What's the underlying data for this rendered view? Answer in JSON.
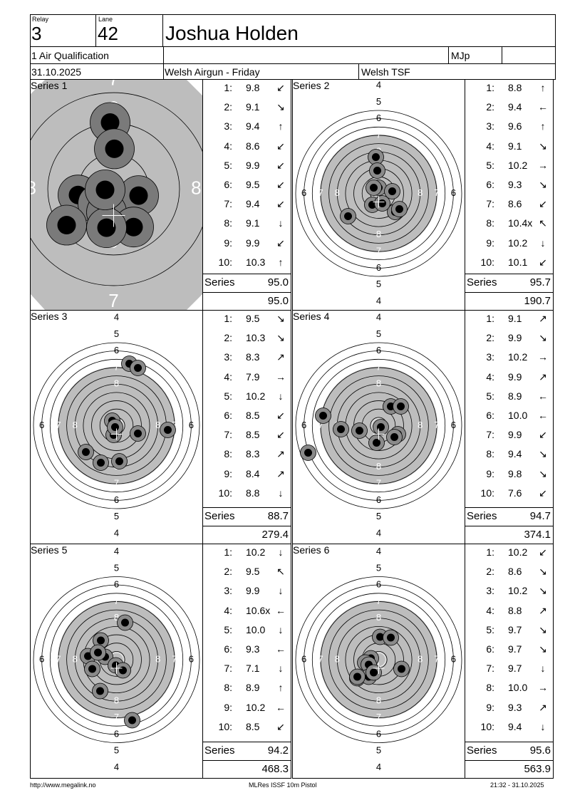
{
  "header": {
    "relay_label": "Relay",
    "relay": "3",
    "lane_label": "Lane",
    "lane": "42",
    "name": "Joshua Holden",
    "event": "1 Air Qualification",
    "judge": "MJp",
    "date": "31.10.2025",
    "competition": "Welsh Airgun - Friday",
    "club": "Welsh TSF"
  },
  "series_label": "Series",
  "series": [
    {
      "title": "Series 1",
      "zoomed": true,
      "shots": [
        {
          "n": "1:",
          "v": "9.8",
          "dir": "↙"
        },
        {
          "n": "2:",
          "v": "9.1",
          "dir": "↘"
        },
        {
          "n": "3:",
          "v": "9.4",
          "dir": "↑"
        },
        {
          "n": "4:",
          "v": "8.6",
          "dir": "↙"
        },
        {
          "n": "5:",
          "v": "9.9",
          "dir": "↙"
        },
        {
          "n": "6:",
          "v": "9.5",
          "dir": "↙"
        },
        {
          "n": "7:",
          "v": "9.4",
          "dir": "↙"
        },
        {
          "n": "8:",
          "v": "9.1",
          "dir": "↓"
        },
        {
          "n": "9:",
          "v": "9.9",
          "dir": "↙"
        },
        {
          "n": "10:",
          "v": "10.3",
          "dir": "↑"
        }
      ],
      "total": "95.0",
      "cumulative": "95.0"
    },
    {
      "title": "Series 2",
      "zoomed": false,
      "shots": [
        {
          "n": "1:",
          "v": "8.8",
          "dir": "↑"
        },
        {
          "n": "2:",
          "v": "9.4",
          "dir": "←"
        },
        {
          "n": "3:",
          "v": "9.6",
          "dir": "↑"
        },
        {
          "n": "4:",
          "v": "9.1",
          "dir": "↘"
        },
        {
          "n": "5:",
          "v": "10.2",
          "dir": "→"
        },
        {
          "n": "6:",
          "v": "9.3",
          "dir": "↘"
        },
        {
          "n": "7:",
          "v": "8.6",
          "dir": "↙"
        },
        {
          "n": "8:",
          "v": "10.4x",
          "dir": "↖"
        },
        {
          "n": "9:",
          "v": "10.2",
          "dir": "↓"
        },
        {
          "n": "10:",
          "v": "10.1",
          "dir": "↙"
        }
      ],
      "total": "95.7",
      "cumulative": "190.7"
    },
    {
      "title": "Series 3",
      "zoomed": false,
      "shots": [
        {
          "n": "1:",
          "v": "9.5",
          "dir": "↘"
        },
        {
          "n": "2:",
          "v": "10.3",
          "dir": "↘"
        },
        {
          "n": "3:",
          "v": "8.3",
          "dir": "↗"
        },
        {
          "n": "4:",
          "v": "7.9",
          "dir": "→"
        },
        {
          "n": "5:",
          "v": "10.2",
          "dir": "↓"
        },
        {
          "n": "6:",
          "v": "8.5",
          "dir": "↙"
        },
        {
          "n": "7:",
          "v": "8.5",
          "dir": "↙"
        },
        {
          "n": "8:",
          "v": "8.3",
          "dir": "↗"
        },
        {
          "n": "9:",
          "v": "8.4",
          "dir": "↗"
        },
        {
          "n": "10:",
          "v": "8.8",
          "dir": "↓"
        }
      ],
      "total": "88.7",
      "cumulative": "279.4"
    },
    {
      "title": "Series 4",
      "zoomed": false,
      "shots": [
        {
          "n": "1:",
          "v": "9.1",
          "dir": "↗"
        },
        {
          "n": "2:",
          "v": "9.9",
          "dir": "↘"
        },
        {
          "n": "3:",
          "v": "10.2",
          "dir": "→"
        },
        {
          "n": "4:",
          "v": "9.9",
          "dir": "↗"
        },
        {
          "n": "5:",
          "v": "8.9",
          "dir": "←"
        },
        {
          "n": "6:",
          "v": "10.0",
          "dir": "←"
        },
        {
          "n": "7:",
          "v": "9.9",
          "dir": "↙"
        },
        {
          "n": "8:",
          "v": "9.4",
          "dir": "↘"
        },
        {
          "n": "9:",
          "v": "9.8",
          "dir": "↘"
        },
        {
          "n": "10:",
          "v": "7.6",
          "dir": "↙"
        }
      ],
      "total": "94.7",
      "cumulative": "374.1"
    },
    {
      "title": "Series 5",
      "zoomed": false,
      "shots": [
        {
          "n": "1:",
          "v": "10.2",
          "dir": "↓"
        },
        {
          "n": "2:",
          "v": "9.5",
          "dir": "↖"
        },
        {
          "n": "3:",
          "v": "9.9",
          "dir": "↓"
        },
        {
          "n": "4:",
          "v": "10.6x",
          "dir": "←"
        },
        {
          "n": "5:",
          "v": "10.0",
          "dir": "↓"
        },
        {
          "n": "6:",
          "v": "9.3",
          "dir": "←"
        },
        {
          "n": "7:",
          "v": "7.1",
          "dir": "↓"
        },
        {
          "n": "8:",
          "v": "8.9",
          "dir": "↑"
        },
        {
          "n": "9:",
          "v": "10.2",
          "dir": "←"
        },
        {
          "n": "10:",
          "v": "8.5",
          "dir": "↙"
        }
      ],
      "total": "94.2",
      "cumulative": "468.3"
    },
    {
      "title": "Series 6",
      "zoomed": false,
      "shots": [
        {
          "n": "1:",
          "v": "10.2",
          "dir": "↙"
        },
        {
          "n": "2:",
          "v": "8.6",
          "dir": "↘"
        },
        {
          "n": "3:",
          "v": "10.2",
          "dir": "↘"
        },
        {
          "n": "4:",
          "v": "8.8",
          "dir": "↗"
        },
        {
          "n": "5:",
          "v": "9.7",
          "dir": "↘"
        },
        {
          "n": "6:",
          "v": "9.7",
          "dir": "↘"
        },
        {
          "n": "7:",
          "v": "9.7",
          "dir": "↓"
        },
        {
          "n": "8:",
          "v": "10.0",
          "dir": "→"
        },
        {
          "n": "9:",
          "v": "9.3",
          "dir": "↗"
        },
        {
          "n": "10:",
          "v": "9.4",
          "dir": "↓"
        }
      ],
      "total": "95.6",
      "cumulative": "563.9"
    }
  ],
  "footer": {
    "url": "http://www.megalink.no",
    "software": "MLRes ISSF 10m Pistol",
    "printed": "21:32 - 31.10.2025"
  }
}
